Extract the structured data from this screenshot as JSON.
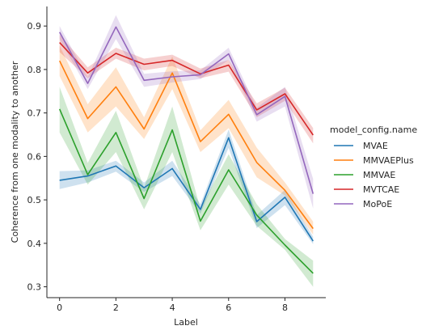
{
  "chart_data": {
    "type": "line",
    "xlabel": "Label",
    "ylabel": "Coherence from one modality to another",
    "xlim": [
      -0.45,
      9.45
    ],
    "ylim": [
      0.275,
      0.945
    ],
    "xticks": [
      0,
      2,
      4,
      6,
      8
    ],
    "yticks": [
      0.3,
      0.4,
      0.5,
      0.6,
      0.7,
      0.8,
      0.9
    ],
    "grid": false,
    "legend": {
      "title": "model_config.name",
      "placement": "right"
    },
    "x": [
      0,
      1,
      2,
      3,
      4,
      5,
      6,
      7,
      8,
      9
    ],
    "series": [
      {
        "name": "MVAE",
        "color": "#1f77b4",
        "values": [
          0.545,
          0.555,
          0.578,
          0.528,
          0.572,
          0.478,
          0.643,
          0.45,
          0.506,
          0.405
        ],
        "ci_low": [
          0.525,
          0.54,
          0.565,
          0.518,
          0.555,
          0.468,
          0.62,
          0.435,
          0.488,
          0.398
        ],
        "ci_high": [
          0.566,
          0.568,
          0.59,
          0.54,
          0.59,
          0.49,
          0.662,
          0.465,
          0.523,
          0.415
        ]
      },
      {
        "name": "MMVAEPlus",
        "color": "#ff7f0e",
        "values": [
          0.82,
          0.687,
          0.76,
          0.663,
          0.792,
          0.634,
          0.697,
          0.586,
          0.522,
          0.434
        ],
        "ci_low": [
          0.785,
          0.655,
          0.715,
          0.64,
          0.755,
          0.61,
          0.665,
          0.552,
          0.51,
          0.42
        ],
        "ci_high": [
          0.855,
          0.72,
          0.805,
          0.69,
          0.83,
          0.66,
          0.73,
          0.62,
          0.54,
          0.45
        ]
      },
      {
        "name": "MMVAE",
        "color": "#2ca02c",
        "values": [
          0.709,
          0.558,
          0.655,
          0.503,
          0.661,
          0.451,
          0.569,
          0.465,
          0.396,
          0.331
        ],
        "ci_low": [
          0.655,
          0.535,
          0.61,
          0.478,
          0.61,
          0.43,
          0.535,
          0.44,
          0.385,
          0.3
        ],
        "ci_high": [
          0.76,
          0.585,
          0.705,
          0.528,
          0.715,
          0.48,
          0.605,
          0.49,
          0.41,
          0.36
        ]
      },
      {
        "name": "MVTCAE",
        "color": "#d62728",
        "values": [
          0.862,
          0.792,
          0.837,
          0.812,
          0.821,
          0.79,
          0.81,
          0.707,
          0.744,
          0.649
        ],
        "ci_low": [
          0.84,
          0.78,
          0.825,
          0.798,
          0.808,
          0.78,
          0.795,
          0.69,
          0.728,
          0.63
        ],
        "ci_high": [
          0.88,
          0.805,
          0.85,
          0.825,
          0.834,
          0.802,
          0.822,
          0.722,
          0.758,
          0.665
        ]
      },
      {
        "name": "MoPoE",
        "color": "#9467bd",
        "values": [
          0.886,
          0.768,
          0.898,
          0.775,
          0.783,
          0.788,
          0.836,
          0.696,
          0.738,
          0.514
        ],
        "ci_low": [
          0.87,
          0.755,
          0.87,
          0.76,
          0.77,
          0.778,
          0.822,
          0.68,
          0.715,
          0.48
        ],
        "ci_high": [
          0.9,
          0.782,
          0.925,
          0.79,
          0.796,
          0.798,
          0.85,
          0.712,
          0.76,
          0.548
        ]
      }
    ]
  }
}
